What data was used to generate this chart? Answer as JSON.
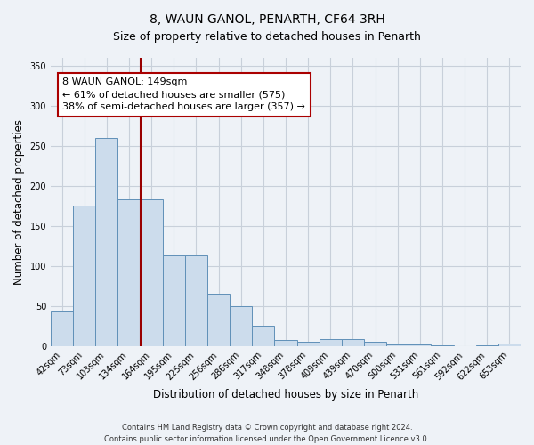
{
  "title": "8, WAUN GANOL, PENARTH, CF64 3RH",
  "subtitle": "Size of property relative to detached houses in Penarth",
  "xlabel": "Distribution of detached houses by size in Penarth",
  "ylabel": "Number of detached properties",
  "bar_labels": [
    "42sqm",
    "73sqm",
    "103sqm",
    "134sqm",
    "164sqm",
    "195sqm",
    "225sqm",
    "256sqm",
    "286sqm",
    "317sqm",
    "348sqm",
    "378sqm",
    "409sqm",
    "439sqm",
    "470sqm",
    "500sqm",
    "531sqm",
    "561sqm",
    "592sqm",
    "622sqm",
    "653sqm"
  ],
  "bar_values": [
    44,
    175,
    260,
    183,
    183,
    113,
    113,
    65,
    50,
    25,
    8,
    5,
    9,
    9,
    5,
    2,
    2,
    1,
    0,
    1,
    3
  ],
  "bar_color": "#ccdcec",
  "bar_edge_color": "#6090b8",
  "vline_x_idx": 3,
  "vline_color": "#990000",
  "ylim": [
    0,
    360
  ],
  "yticks": [
    0,
    50,
    100,
    150,
    200,
    250,
    300,
    350
  ],
  "annotation_line1": "8 WAUN GANOL: 149sqm",
  "annotation_line2": "← 61% of detached houses are smaller (575)",
  "annotation_line3": "38% of semi-detached houses are larger (357) →",
  "annotation_box_color": "#ffffff",
  "annotation_box_edge": "#aa0000",
  "footer_line1": "Contains HM Land Registry data © Crown copyright and database right 2024.",
  "footer_line2": "Contains public sector information licensed under the Open Government Licence v3.0.",
  "background_color": "#eef2f7",
  "grid_color": "#c8d0da",
  "title_fontsize": 10,
  "subtitle_fontsize": 9,
  "axis_label_fontsize": 8.5,
  "tick_fontsize": 7,
  "annotation_fontsize": 8,
  "footer_fontsize": 6
}
